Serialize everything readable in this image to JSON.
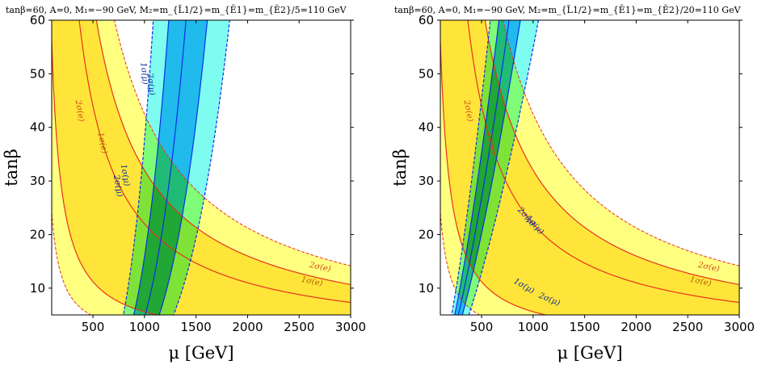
{
  "chart_data": [
    {
      "type": "area",
      "title": "tanβ=60, A=0, M₁=−90 GeV, M₂=m_{L̃1/2}=m_{Ẽ1}=m_{Ẽ2}/5=110 GeV",
      "xlabel": "μ [GeV]",
      "ylabel": "tanβ",
      "xlim": [
        100,
        3000
      ],
      "ylim": [
        5,
        60
      ],
      "xticks": [
        500,
        1000,
        1500,
        2000,
        2500,
        3000
      ],
      "yticks": [
        10,
        20,
        30,
        40,
        50,
        60
      ],
      "grid": false,
      "electron_bands": {
        "form": "tanβ·μ = const",
        "outer_2sigma": [
          2400,
          42500
        ],
        "inner_1sigma": [
          5600,
          32000
        ],
        "central": 22000,
        "labels": [
          "2σ(e)",
          "1σ(e)"
        ]
      },
      "muon_bands": {
        "form": "tanβ = a + b·μ^p (x in GeV)",
        "outer_left": {
          "a": -13,
          "b": 1.6e-12,
          "p": 4.5
        },
        "inner_left": {
          "a": -12,
          "b": 8.8e-13,
          "p": 4.5
        },
        "central": {
          "a": -11,
          "b": 4.9e-13,
          "p": 4.5
        },
        "inner_right": {
          "a": -10,
          "b": 2.6e-13,
          "p": 4.5
        },
        "outer_right": {
          "a": -9,
          "b": 1.45e-13,
          "p": 4.5
        },
        "labels": [
          "2σ(μ)",
          "1σ(μ)",
          "1σ(μ)",
          "2σ(μ)"
        ]
      }
    },
    {
      "type": "area",
      "title": "tanβ=60, A=0, M₁=−90 GeV, M₂=m_{L̃1/2}=m_{Ẽ1}=m_{Ẽ2}/20=110 GeV",
      "xlabel": "μ [GeV]",
      "ylabel": "tanβ",
      "xlim": [
        100,
        3000
      ],
      "ylim": [
        5,
        60
      ],
      "xticks": [
        500,
        1000,
        1500,
        2000,
        2500,
        3000
      ],
      "yticks": [
        10,
        20,
        30,
        40,
        50,
        60
      ],
      "grid": false,
      "electron_bands": {
        "form": "tanβ·μ = const",
        "outer_2sigma": [
          2400,
          42500
        ],
        "inner_1sigma": [
          5600,
          32000
        ],
        "central": 22000,
        "labels": [
          "2σ(e)",
          "1σ(e)",
          "2σ(e)",
          "1σ(e)"
        ]
      },
      "muon_bands": {
        "form": "tanβ = a + b·μ^p (x in GeV)",
        "outer_left": {
          "a": -10,
          "b": 0.00495,
          "p": 1.5
        },
        "inner_left": {
          "a": -10,
          "b": 0.00405,
          "p": 1.5
        },
        "central": {
          "a": -10,
          "b": 0.0033,
          "p": 1.5
        },
        "inner_right": {
          "a": -10,
          "b": 0.0027,
          "p": 1.5
        },
        "outer_right": {
          "a": -10,
          "b": 0.00205,
          "p": 1.5
        },
        "labels": [
          "2σ(μ)",
          "1σ(μ)",
          "1σ(μ)",
          "2σ(μ)"
        ]
      }
    }
  ],
  "colors": {
    "e_2sigma": "#ffff80",
    "e_1sigma": "#ffe53a",
    "e_line": "#e8331c",
    "mu_2sigma": "#7ffcf0",
    "mu_1sigma": "#40bdfb",
    "mu_line": "#0d2ee8",
    "overlap_e2_mu2": "#c3f9a0",
    "overlap_e1_mu2": "#7ef3b4",
    "overlap_e2_mu1": "#5ad7d8",
    "overlap_e1_mu1": "#3fb5cb"
  }
}
